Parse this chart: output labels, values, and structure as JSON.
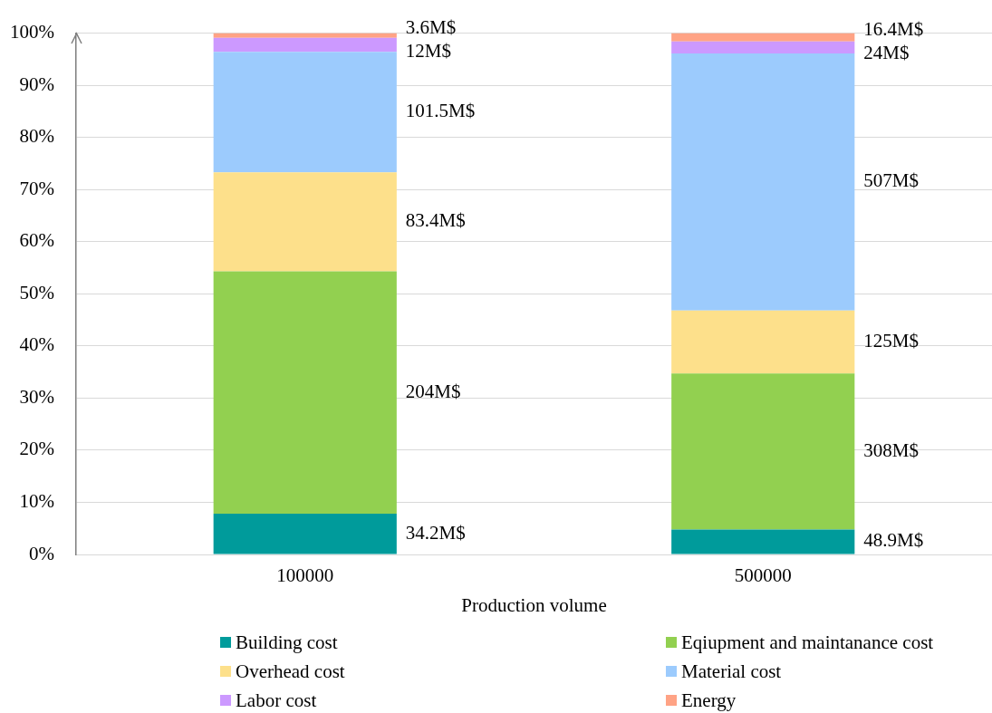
{
  "chart_data": {
    "type": "bar",
    "stacked": true,
    "xlabel": "Production volume",
    "categories": [
      "100000",
      "500000"
    ],
    "series": [
      {
        "name": "Building cost",
        "color": "#009b9b",
        "values": [
          7.8,
          4.8
        ]
      },
      {
        "name": "Eqiupment and maintanance cost",
        "color": "#92d050",
        "values": [
          46.5,
          29.9
        ]
      },
      {
        "name": "Overhead cost",
        "color": "#fde08b",
        "values": [
          19.0,
          12.1
        ]
      },
      {
        "name": "Material cost",
        "color": "#9ccbfd",
        "values": [
          23.1,
          49.3
        ]
      },
      {
        "name": "Labor cost",
        "color": "#cc99ff",
        "values": [
          2.7,
          2.3
        ]
      },
      {
        "name": "Energy",
        "color": "#ffa385",
        "values": [
          0.9,
          1.6
        ]
      }
    ],
    "annotations": [
      "34.2M$",
      "204M$",
      "83.4M$",
      "101.5M$",
      "12M$",
      "3.6M$",
      "48.9M$",
      "308M$",
      "125M$",
      "507M$",
      "24M$",
      "16.4M$"
    ],
    "ylim": [
      0,
      100
    ],
    "yticks": [
      {
        "value": 0,
        "label": "0%"
      },
      {
        "value": 10,
        "label": "10%"
      },
      {
        "value": 20,
        "label": "20%"
      },
      {
        "value": 30,
        "label": "30%"
      },
      {
        "value": 40,
        "label": "40%"
      },
      {
        "value": 50,
        "label": "50%"
      },
      {
        "value": 60,
        "label": "60%"
      },
      {
        "value": 70,
        "label": "70%"
      },
      {
        "value": 80,
        "label": "80%"
      },
      {
        "value": 90,
        "label": "90%"
      },
      {
        "value": 100,
        "label": "100%"
      }
    ],
    "grid": "y",
    "legend": "bottom"
  }
}
